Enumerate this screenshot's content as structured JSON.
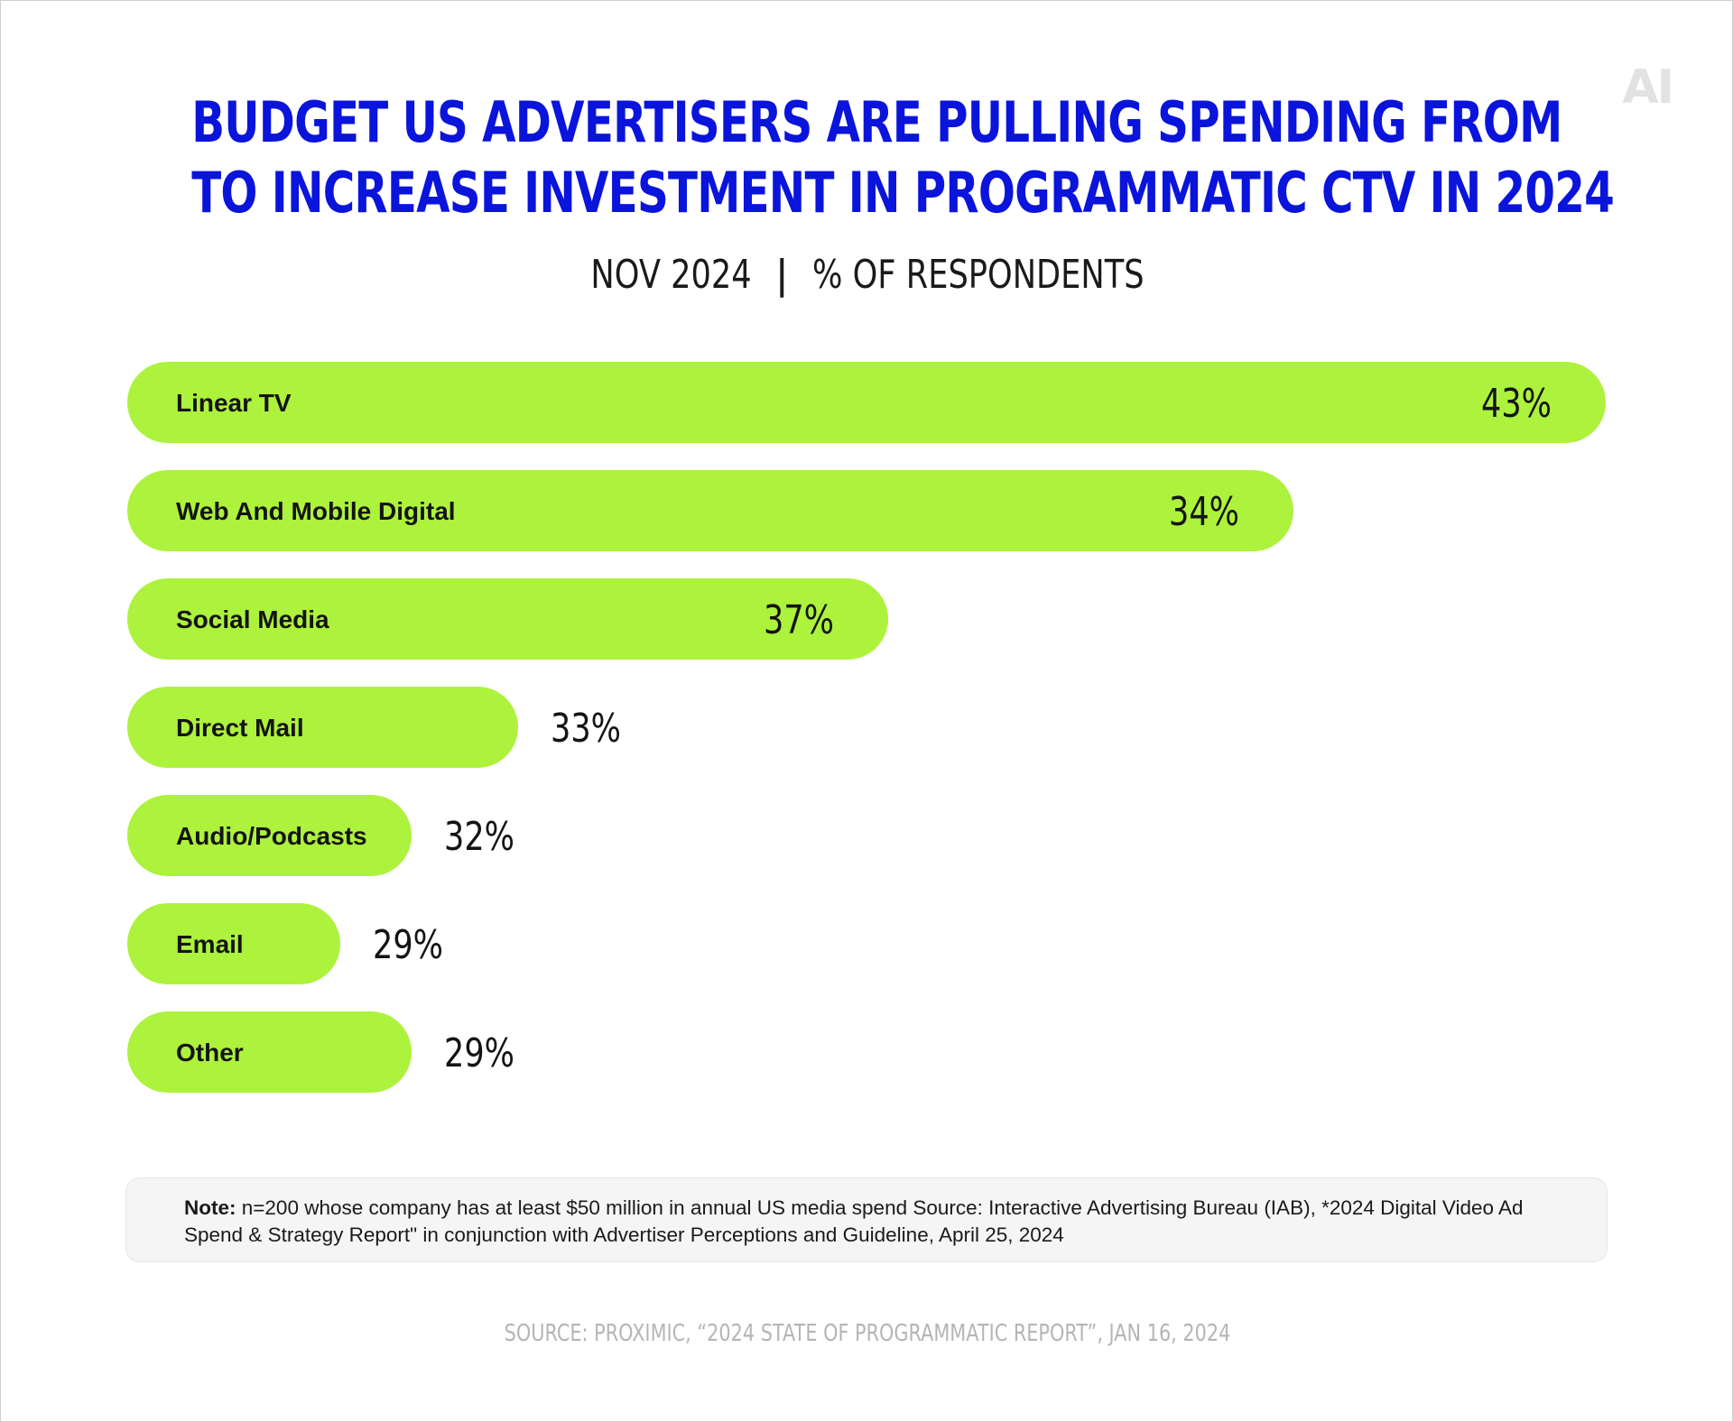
{
  "logo": "AI",
  "header": {
    "title_line1": "BUDGET US ADVERTISERS ARE PULLING SPENDING FROM",
    "title_line2": "TO INCREASE INVESTMENT IN PROGRAMMATIC CTV IN 2024",
    "subtitle_date": "NOV 2024",
    "subtitle_sep": "|",
    "subtitle_metric": "% OF RESPONDENTS"
  },
  "chart_data": {
    "type": "bar",
    "orientation": "horizontal",
    "categories": [
      "Linear TV",
      "Web And Mobile Digital",
      "Social Media",
      "Direct Mail",
      "Audio/Podcasts",
      "Email",
      "Other"
    ],
    "values": [
      43,
      34,
      37,
      33,
      32,
      29,
      29
    ],
    "value_labels": [
      "43%",
      "34%",
      "37%",
      "33%",
      "32%",
      "29%",
      "29%"
    ],
    "bar_color": "#adf23c",
    "grid": false,
    "legend": "none"
  },
  "note": {
    "label": "Note:",
    "text": "n=200 whose company has at least $50 million in annual US media spend Source: Interactive Advertising Bureau (IAB), *2024 Digital Video Ad Spend & Strategy Report\" in conjunction with Advertiser Perceptions and Guideline, April 25, 2024"
  },
  "source": "SOURCE: PROXIMIC, “2024 STATE OF PROGRAMMATIC REPORT”, JAN 16, 2024"
}
